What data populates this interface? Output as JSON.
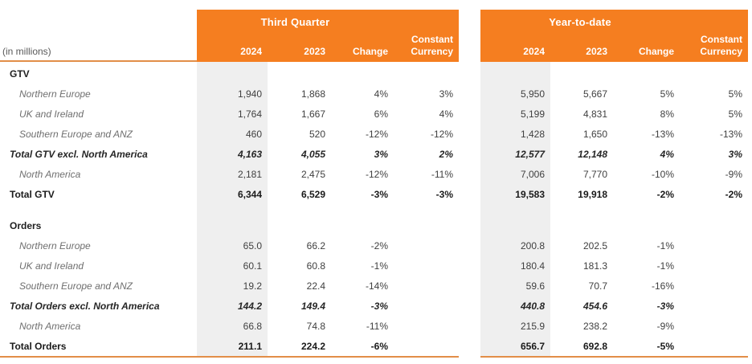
{
  "colors": {
    "header_orange": "#f57e20",
    "rule_orange": "#e28e48",
    "band_gray": "#efefef",
    "header_text": "#ffffff",
    "muted_text": "#6f6f6f",
    "dark_text": "#1a1a1a"
  },
  "corner_label": "(in millions)",
  "headers": {
    "left_title": "Third Quarter",
    "right_title": "Year-to-date",
    "col_2024": "2024",
    "col_2023": "2023",
    "col_change": "Change",
    "col_constant_line1": "Constant",
    "col_constant_line2": "Currency"
  },
  "rows": [
    {
      "style": "section",
      "label": "GTV",
      "q": [
        "",
        "",
        "",
        ""
      ],
      "y": [
        "",
        "",
        "",
        ""
      ]
    },
    {
      "style": "region",
      "label": "Northern Europe",
      "q": [
        "1,940",
        "1,868",
        "4%",
        "3%"
      ],
      "y": [
        "5,950",
        "5,667",
        "5%",
        "5%"
      ]
    },
    {
      "style": "region",
      "label": "UK and Ireland",
      "q": [
        "1,764",
        "1,667",
        "6%",
        "4%"
      ],
      "y": [
        "5,199",
        "4,831",
        "8%",
        "5%"
      ]
    },
    {
      "style": "region",
      "label": "Southern Europe and ANZ",
      "q": [
        "460",
        "520",
        "-12%",
        "-12%"
      ],
      "y": [
        "1,428",
        "1,650",
        "-13%",
        "-13%"
      ]
    },
    {
      "style": "totalx",
      "label": "Total GTV excl. North America",
      "q": [
        "4,163",
        "4,055",
        "3%",
        "2%"
      ],
      "y": [
        "12,577",
        "12,148",
        "4%",
        "3%"
      ]
    },
    {
      "style": "region",
      "label": "North America",
      "q": [
        "2,181",
        "2,475",
        "-12%",
        "-11%"
      ],
      "y": [
        "7,006",
        "7,770",
        "-10%",
        "-9%"
      ]
    },
    {
      "style": "total",
      "label": "Total GTV",
      "q": [
        "6,344",
        "6,529",
        "-3%",
        "-3%"
      ],
      "y": [
        "19,583",
        "19,918",
        "-2%",
        "-2%"
      ]
    },
    {
      "style": "spacer",
      "label": "",
      "q": [
        "",
        "",
        "",
        ""
      ],
      "y": [
        "",
        "",
        "",
        ""
      ]
    },
    {
      "style": "section",
      "label": "Orders",
      "q": [
        "",
        "",
        "",
        ""
      ],
      "y": [
        "",
        "",
        "",
        ""
      ]
    },
    {
      "style": "region",
      "label": "Northern Europe",
      "q": [
        "65.0",
        "66.2",
        "-2%",
        ""
      ],
      "y": [
        "200.8",
        "202.5",
        "-1%",
        ""
      ]
    },
    {
      "style": "region",
      "label": "UK and Ireland",
      "q": [
        "60.1",
        "60.8",
        "-1%",
        ""
      ],
      "y": [
        "180.4",
        "181.3",
        "-1%",
        ""
      ]
    },
    {
      "style": "region",
      "label": "Southern Europe and ANZ",
      "q": [
        "19.2",
        "22.4",
        "-14%",
        ""
      ],
      "y": [
        "59.6",
        "70.7",
        "-16%",
        ""
      ]
    },
    {
      "style": "totalx",
      "label": "Total Orders excl. North America",
      "q": [
        "144.2",
        "149.4",
        "-3%",
        ""
      ],
      "y": [
        "440.8",
        "454.6",
        "-3%",
        ""
      ]
    },
    {
      "style": "region",
      "label": "North America",
      "q": [
        "66.8",
        "74.8",
        "-11%",
        ""
      ],
      "y": [
        "215.9",
        "238.2",
        "-9%",
        ""
      ]
    },
    {
      "style": "total",
      "label": "Total Orders",
      "q": [
        "211.1",
        "224.2",
        "-6%",
        ""
      ],
      "y": [
        "656.7",
        "692.8",
        "-5%",
        ""
      ]
    }
  ]
}
